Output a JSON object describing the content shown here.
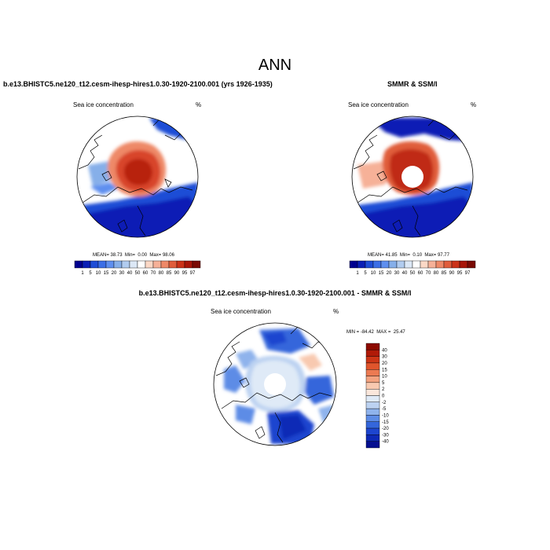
{
  "figure": {
    "title": "ANN"
  },
  "chart_data": [
    {
      "type": "heatmap",
      "projection": "north-polar-stereographic",
      "title": "b.e13.BHISTC5.ne120_t12.cesm-ihesp-hires1.0.30-1920-2100.001 (yrs 1926-1935)",
      "left_label": "Sea ice concentration",
      "unit": "%",
      "stats": {
        "mean_label": "MEAN=",
        "mean": "38.73",
        "min_label": "Min=",
        "min": "0.00",
        "max_label": "Max=",
        "max": "98.06"
      },
      "colorbar": {
        "orientation": "horizontal",
        "levels": [
          "1",
          "5",
          "10",
          "15",
          "20",
          "30",
          "40",
          "50",
          "60",
          "70",
          "80",
          "85",
          "90",
          "95",
          "97"
        ],
        "colors": [
          "#00008f",
          "#0a1fb5",
          "#1f4ed6",
          "#3b6fe6",
          "#5e8fef",
          "#86afe9",
          "#b1ccef",
          "#dce8f6",
          "#ffffff",
          "#fbd8c6",
          "#f6b198",
          "#ee8968",
          "#e05d3b",
          "#cb3218",
          "#a81509",
          "#7a0a04"
        ]
      }
    },
    {
      "type": "heatmap",
      "projection": "north-polar-stereographic",
      "title": "SMMR & SSM/I",
      "left_label": "Sea ice concentration",
      "unit": "%",
      "stats": {
        "mean_label": "MEAN=",
        "mean": "41.85",
        "min_label": "Min=",
        "min": "0.10",
        "max_label": "Max=",
        "max": "97.77"
      },
      "colorbar": {
        "orientation": "horizontal",
        "levels": [
          "1",
          "5",
          "10",
          "15",
          "20",
          "30",
          "40",
          "50",
          "60",
          "70",
          "80",
          "85",
          "90",
          "95",
          "97"
        ],
        "colors": [
          "#00008f",
          "#0a1fb5",
          "#1f4ed6",
          "#3b6fe6",
          "#5e8fef",
          "#86afe9",
          "#b1ccef",
          "#dce8f6",
          "#ffffff",
          "#fbd8c6",
          "#f6b198",
          "#ee8968",
          "#e05d3b",
          "#cb3218",
          "#a81509",
          "#7a0a04"
        ]
      }
    },
    {
      "type": "heatmap",
      "projection": "north-polar-stereographic",
      "title": "b.e13.BHISTC5.ne120_t12.cesm-ihesp-hires1.0.30-1920-2100.001 - SMMR & SSM/I",
      "left_label": "Sea ice concentration",
      "unit": "%",
      "stats": {
        "min_label": "MIN =",
        "min": "-84.42",
        "max_label": "MAX =",
        "max": "25.47"
      },
      "colorbar": {
        "orientation": "vertical",
        "levels": [
          "40",
          "30",
          "20",
          "15",
          "10",
          "5",
          "2",
          "0",
          "-2",
          "-5",
          "-10",
          "-15",
          "-20",
          "-30",
          "-40"
        ],
        "colors": [
          "#8c0a00",
          "#b01a08",
          "#cc3516",
          "#e0552c",
          "#ec7a52",
          "#f3a27f",
          "#f8c9b0",
          "#fbe7dc",
          "#dfeaf7",
          "#bcd2f1",
          "#8fb3ec",
          "#5d8ce6",
          "#3466db",
          "#1d45cf",
          "#0d29b6",
          "#050f8f"
        ]
      }
    }
  ]
}
